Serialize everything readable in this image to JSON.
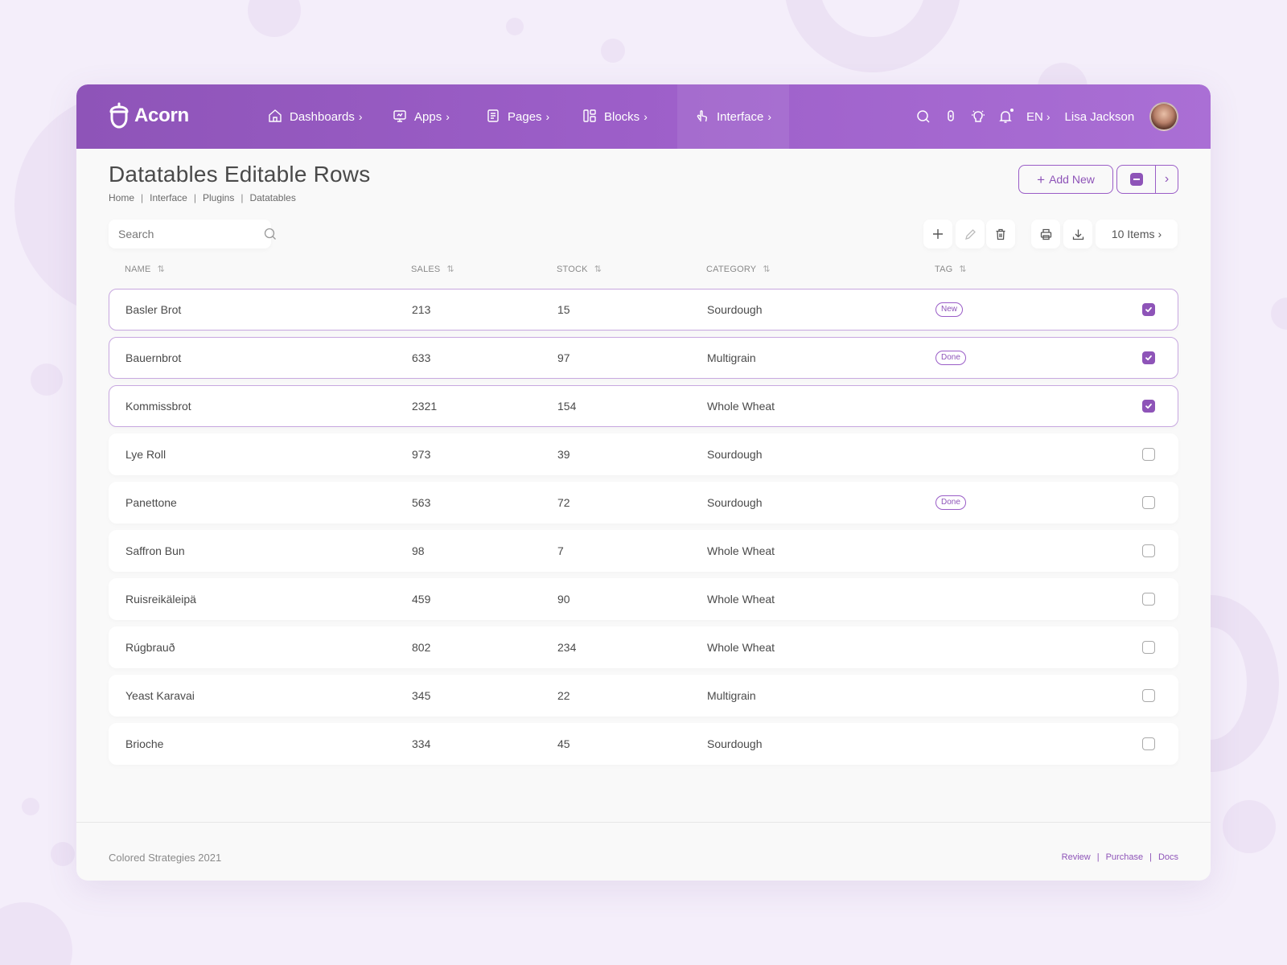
{
  "app": {
    "name": "Acorn"
  },
  "nav": {
    "items": [
      {
        "label": "Dashboards",
        "icon": "home-icon"
      },
      {
        "label": "Apps",
        "icon": "screen-icon"
      },
      {
        "label": "Pages",
        "icon": "file-icon"
      },
      {
        "label": "Blocks",
        "icon": "layout-icon"
      },
      {
        "label": "Interface",
        "icon": "pointer-icon",
        "active": true
      }
    ],
    "language": "EN",
    "user_name": "Lisa Jackson"
  },
  "page": {
    "title": "Datatables Editable Rows",
    "breadcrumb": [
      "Home",
      "Interface",
      "Plugins",
      "Datatables"
    ],
    "add_new_label": "Add New"
  },
  "toolbar": {
    "search_placeholder": "Search",
    "items_label": "10 Items"
  },
  "table": {
    "columns": [
      "Name",
      "Sales",
      "Stock",
      "Category",
      "Tag"
    ],
    "rows": [
      {
        "name": "Basler Brot",
        "sales": "213",
        "stock": "15",
        "category": "Sourdough",
        "tag": "New",
        "checked": true
      },
      {
        "name": "Bauernbrot",
        "sales": "633",
        "stock": "97",
        "category": "Multigrain",
        "tag": "Done",
        "checked": true
      },
      {
        "name": "Kommissbrot",
        "sales": "2321",
        "stock": "154",
        "category": "Whole Wheat",
        "tag": "",
        "checked": true
      },
      {
        "name": "Lye Roll",
        "sales": "973",
        "stock": "39",
        "category": "Sourdough",
        "tag": "",
        "checked": false
      },
      {
        "name": "Panettone",
        "sales": "563",
        "stock": "72",
        "category": "Sourdough",
        "tag": "Done",
        "checked": false
      },
      {
        "name": "Saffron Bun",
        "sales": "98",
        "stock": "7",
        "category": "Whole Wheat",
        "tag": "",
        "checked": false
      },
      {
        "name": "Ruisreikäleipä",
        "sales": "459",
        "stock": "90",
        "category": "Whole Wheat",
        "tag": "",
        "checked": false
      },
      {
        "name": "Rúgbrauð",
        "sales": "802",
        "stock": "234",
        "category": "Whole Wheat",
        "tag": "",
        "checked": false
      },
      {
        "name": "Yeast Karavai",
        "sales": "345",
        "stock": "22",
        "category": "Multigrain",
        "tag": "",
        "checked": false
      },
      {
        "name": "Brioche",
        "sales": "334",
        "stock": "45",
        "category": "Sourdough",
        "tag": "",
        "checked": false
      }
    ]
  },
  "footer": {
    "copyright": "Colored Strategies 2021",
    "links": [
      "Review",
      "Purchase",
      "Docs"
    ]
  },
  "colors": {
    "accent": "#8e54b8",
    "navbar_gradient_start": "#8e54b8",
    "navbar_gradient_end": "#aa6fd5",
    "background": "#f4eefa"
  }
}
